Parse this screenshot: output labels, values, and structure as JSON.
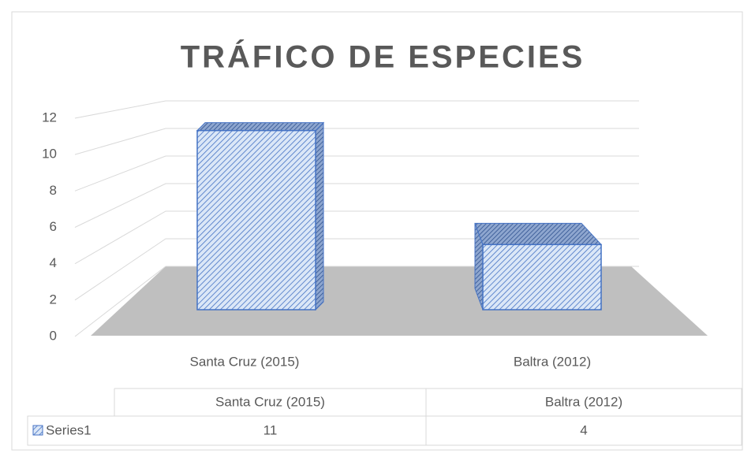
{
  "chart_data": {
    "type": "bar3d",
    "title": "TRÁFICO DE ESPECIES",
    "categories": [
      "Santa Cruz (2015)",
      "Baltra (2012)"
    ],
    "series": [
      {
        "name": "Series1",
        "color": "#4472c4",
        "values": [
          11,
          4
        ]
      }
    ],
    "ylim": [
      0,
      12
    ],
    "yticks": [
      0,
      2,
      4,
      6,
      8,
      10,
      12
    ],
    "grid": true,
    "data_table": true
  }
}
